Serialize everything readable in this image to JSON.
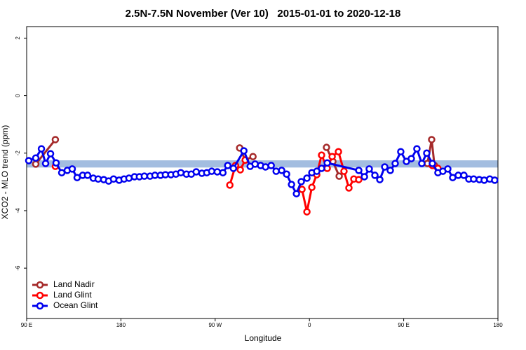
{
  "chart_data": {
    "type": "line",
    "title": "2.5N-7.5N November (Ver 10)   2015-01-01 to 2020-12-18",
    "x_label": "Longitude",
    "y_label": "XCO2 - MLO trend (ppm)",
    "xlim": [
      90,
      540
    ],
    "xticks": [
      {
        "value": 90,
        "label": "90 E"
      },
      180,
      {
        "value": 270,
        "label": "90 W"
      },
      {
        "value": 360,
        "label": "0"
      },
      {
        "value": 450,
        "label": "90 E"
      },
      {
        "value": 540,
        "label": "180"
      }
    ],
    "ylim": [
      -7.75,
      2.4
    ],
    "yticks": [
      2,
      0,
      -2,
      -4,
      -6
    ],
    "band": {
      "range": [
        -2.5,
        -2.25
      ],
      "color": "#a3bde0"
    },
    "legend": "bottom-left",
    "series": [
      {
        "name": "Land Nadir",
        "color": "#a52a2a",
        "x": [
          98.7,
          117.4,
          null,
          293.4,
          298.7,
          306.1,
          null,
          376.3,
          382.4,
          388.4,
          null,
          472.7,
          476.7,
          479.4
        ],
        "values": [
          -2.38,
          -1.53,
          null,
          -1.82,
          -2.24,
          -2.12,
          null,
          -1.8,
          -2.29,
          -2.8,
          null,
          -2.36,
          -1.53,
          -2.43
        ]
      },
      {
        "name": "Land Glint",
        "color": "#ff0000",
        "x": [
          117.4,
          null,
          284.0,
          289.4,
          294.0,
          298.7,
          null,
          352.9,
          357.6,
          362.3,
          367.0,
          371.6,
          377.0,
          381.7,
          387.7,
          393.0,
          397.7,
          402.4,
          407.1,
          null,
          477.4,
          482.7
        ],
        "values": [
          -2.46,
          null,
          -3.11,
          -2.43,
          -2.58,
          -2.24,
          null,
          -3.26,
          -4.04,
          -3.19,
          -2.75,
          -2.07,
          -2.53,
          -2.12,
          -1.95,
          -2.63,
          -3.21,
          -2.9,
          -2.92,
          null,
          -2.43,
          -2.53
        ]
      },
      {
        "name": "Ocean Glint",
        "color": "#0000ee",
        "x": [
          92.0,
          98.7,
          104.1,
          108.1,
          112.8,
          118.1,
          123.5,
          128.8,
          133.5,
          138.2,
          143.5,
          148.2,
          153.6,
          158.3,
          163.6,
          168.3,
          173.0,
          178.3,
          183.0,
          187.7,
          193.0,
          197.7,
          202.4,
          207.8,
          212.5,
          217.8,
          222.5,
          227.8,
          232.5,
          237.2,
          242.6,
          247.2,
          251.9,
          257.3,
          262.0,
          266.7,
          272.0,
          277.4,
          282.0,
          287.4,
          297.4,
          303.4,
          308.1,
          313.4,
          318.1,
          323.5,
          328.2,
          333.5,
          338.2,
          342.9,
          347.6,
          352.2,
          357.6,
          362.3,
          367.0,
          371.6,
          377.0,
          407.1,
          412.5,
          417.1,
          422.5,
          427.2,
          431.9,
          437.2,
          441.9,
          447.2,
          452.6,
          457.3,
          462.6,
          467.3,
          472.0,
          477.4,
          482.7,
          487.4,
          492.1,
          496.8,
          502.1,
          507.5,
          512.2,
          516.8,
          522.2,
          526.9,
          532.2,
          536.9
        ],
        "values": [
          -2.26,
          -2.17,
          -1.85,
          -2.36,
          -2.02,
          -2.34,
          -2.68,
          -2.6,
          -2.55,
          -2.85,
          -2.77,
          -2.77,
          -2.87,
          -2.9,
          -2.92,
          -2.97,
          -2.9,
          -2.94,
          -2.9,
          -2.87,
          -2.82,
          -2.82,
          -2.8,
          -2.8,
          -2.77,
          -2.77,
          -2.75,
          -2.75,
          -2.73,
          -2.68,
          -2.73,
          -2.73,
          -2.65,
          -2.7,
          -2.68,
          -2.63,
          -2.65,
          -2.68,
          -2.43,
          -2.53,
          -1.92,
          -2.46,
          -2.38,
          -2.43,
          -2.48,
          -2.43,
          -2.63,
          -2.6,
          -2.73,
          -3.09,
          -3.41,
          -2.99,
          -2.87,
          -2.68,
          -2.63,
          -2.53,
          -2.34,
          -2.6,
          -2.82,
          -2.55,
          -2.77,
          -2.92,
          -2.48,
          -2.6,
          -2.36,
          -1.95,
          -2.29,
          -2.19,
          -1.85,
          -2.36,
          -2.0,
          -2.36,
          -2.68,
          -2.63,
          -2.55,
          -2.85,
          -2.77,
          -2.77,
          -2.9,
          -2.9,
          -2.92,
          -2.94,
          -2.9,
          -2.94
        ]
      }
    ]
  }
}
